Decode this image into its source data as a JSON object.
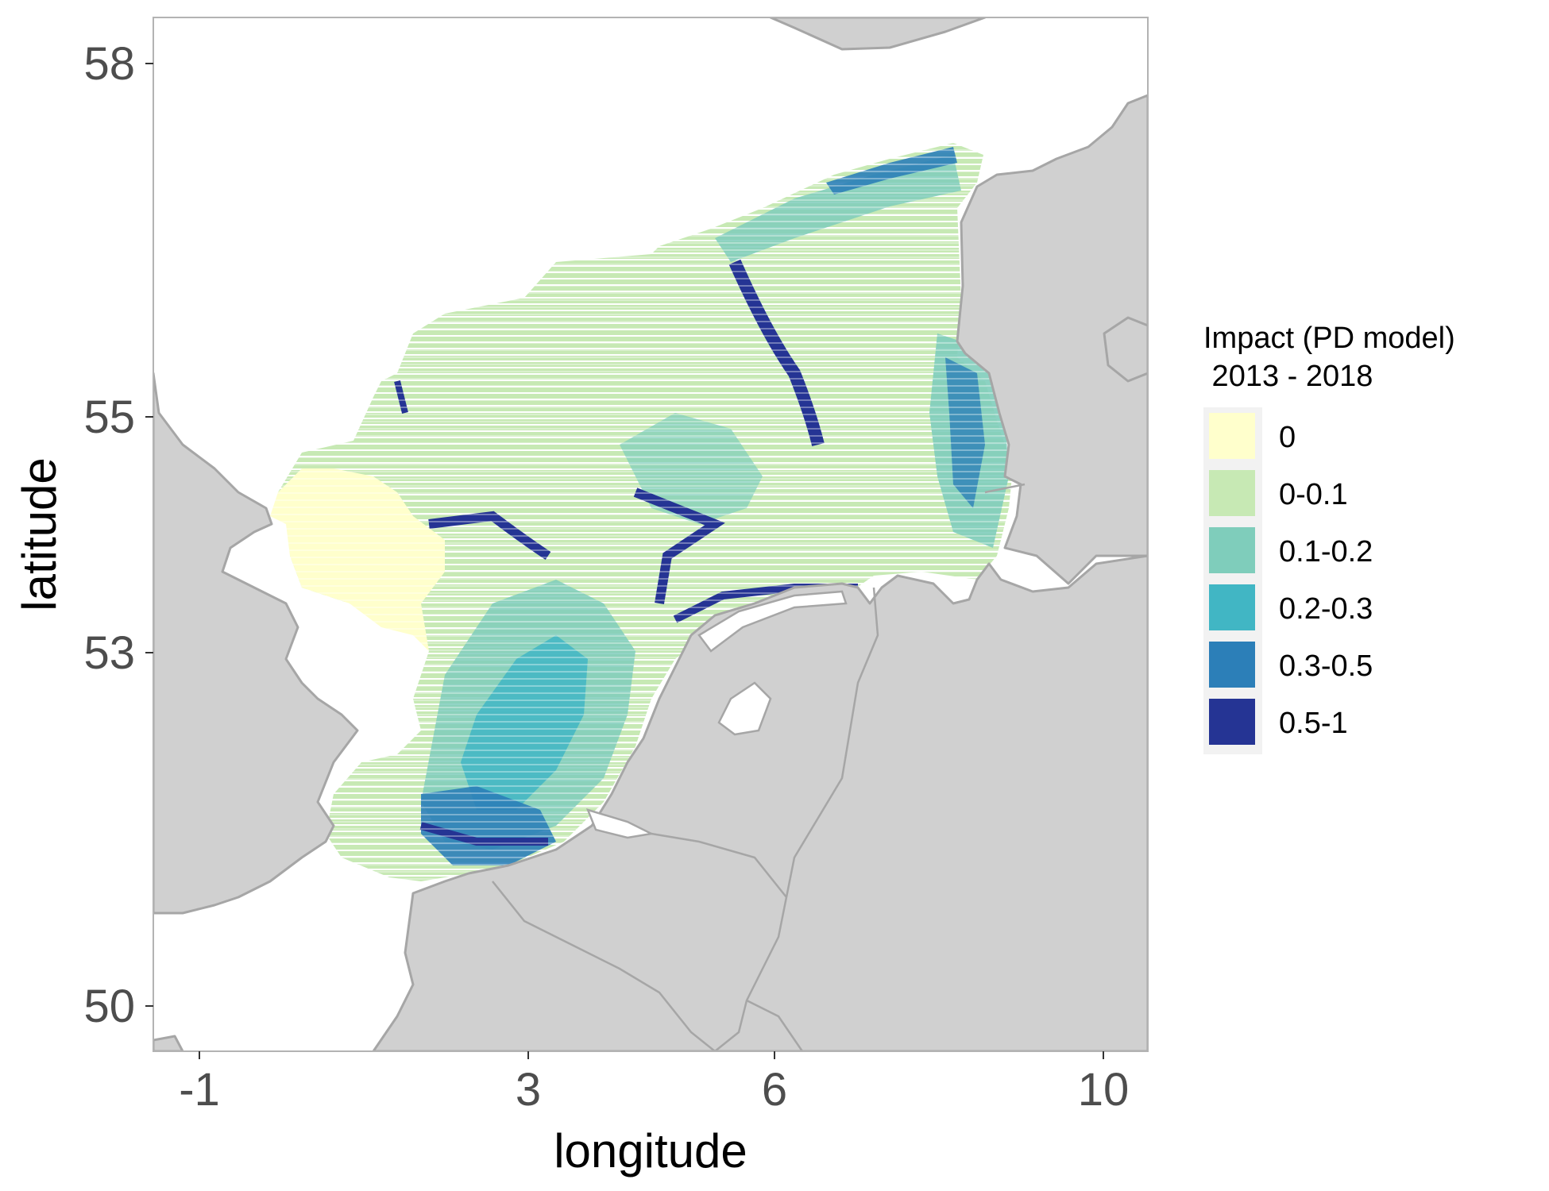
{
  "chart_data": {
    "type": "heatmap",
    "title": "",
    "xlabel": "longitude",
    "ylabel": "latitude",
    "x_ticks": [
      "-1",
      "3",
      "6",
      "10"
    ],
    "y_ticks": [
      "58",
      "55",
      "53",
      "50"
    ],
    "xlim": [
      -1.55,
      10.55
    ],
    "ylim": [
      49.65,
      58.45
    ],
    "grid": false,
    "legend_position": "right",
    "legend": {
      "title_line1": "Impact (PD model)",
      "title_line2": " 2013 - 2018",
      "classes": [
        {
          "label": "0",
          "color": "#ffffcc"
        },
        {
          "label": "0-0.1",
          "color": "#c7e9b4"
        },
        {
          "label": "0.1-0.2",
          "color": "#7fcdbb"
        },
        {
          "label": "0.2-0.3",
          "color": "#41b6c4"
        },
        {
          "label": "0.3-0.5",
          "color": "#2c7fb8"
        },
        {
          "label": "0.5-1",
          "color": "#253494"
        }
      ]
    }
  }
}
